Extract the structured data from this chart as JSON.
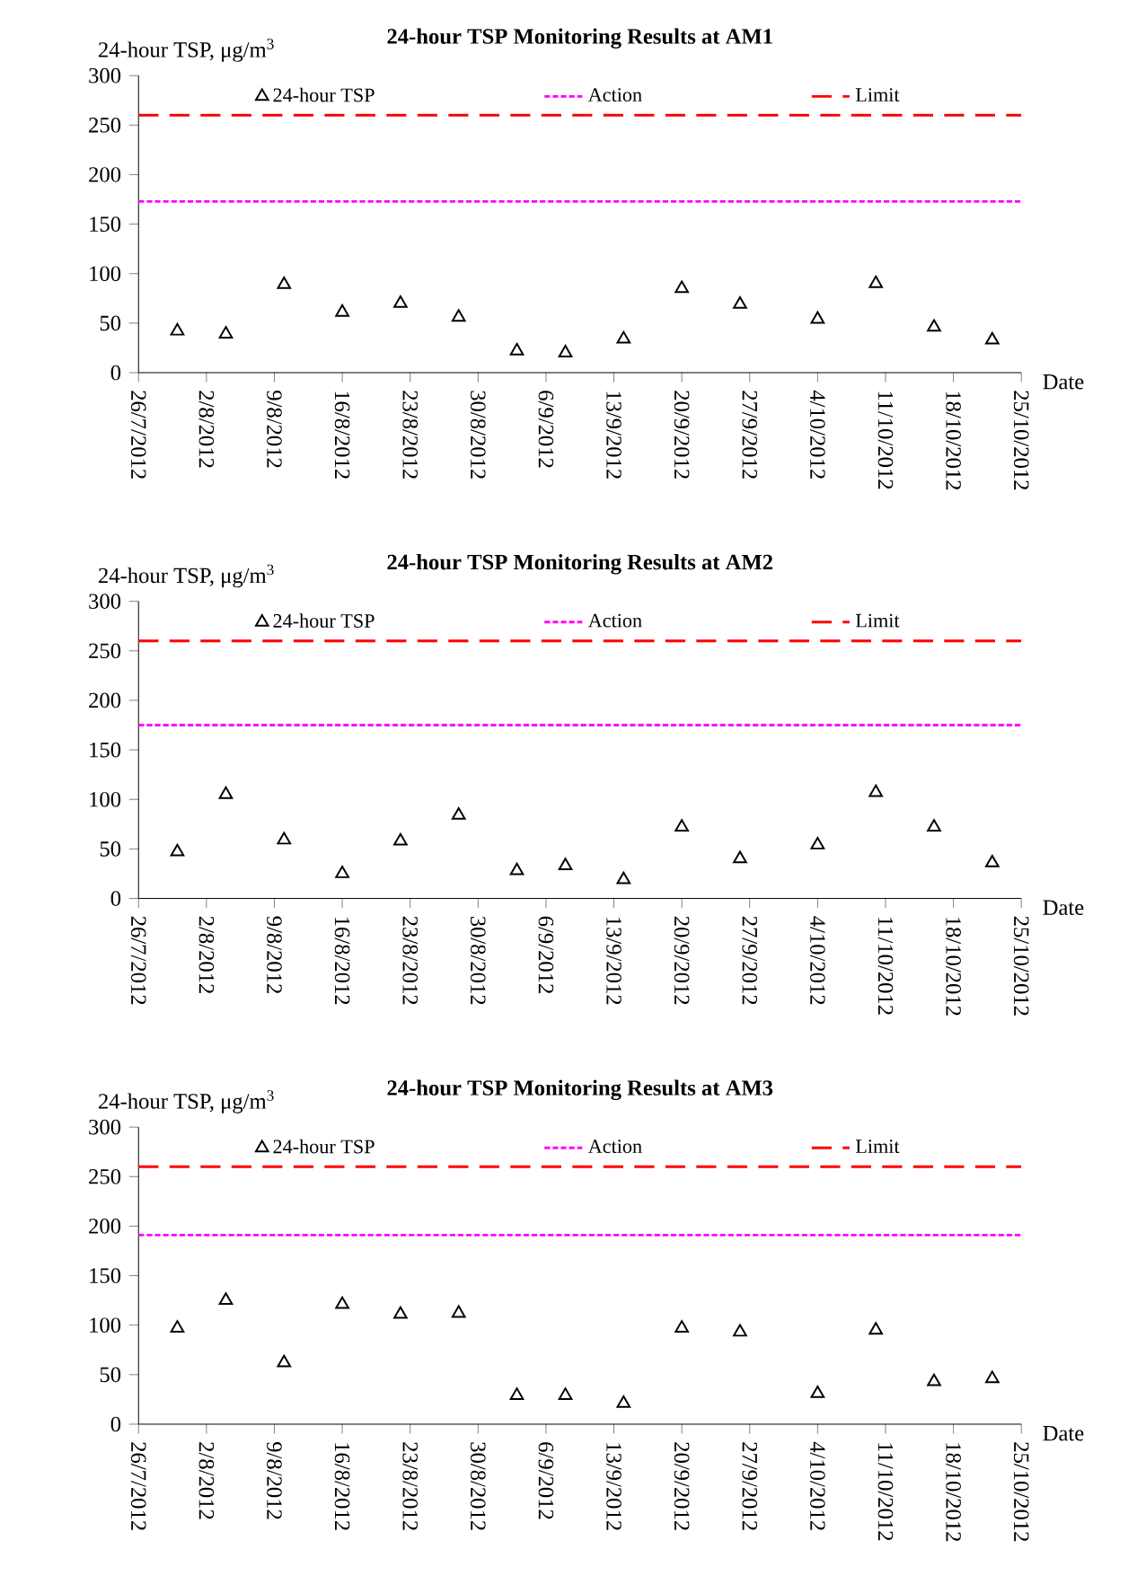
{
  "chart_data": [
    {
      "type": "scatter",
      "title": "24-hour TSP Monitoring Results at AM1",
      "xlabel": "Date",
      "ylabel": "24-hour TSP, μg/m$^{3}$",
      "x": [
        "2012-07-30",
        "2012-08-04",
        "2012-08-10",
        "2012-08-16",
        "2012-08-22",
        "2012-08-28",
        "2012-09-03",
        "2012-09-08",
        "2012-09-14",
        "2012-09-20",
        "2012-09-26",
        "2012-10-04",
        "2012-10-10",
        "2012-10-16",
        "2012-10-22"
      ],
      "series": [
        {
          "name": "24-hour TSP",
          "color": "#000000",
          "values": [
            42,
            39,
            89,
            61,
            70,
            56,
            22,
            20,
            34,
            85,
            69,
            54,
            90,
            46,
            33
          ]
        }
      ],
      "marker": "triangle",
      "legend": "top",
      "xlim": [
        "2012-07-26",
        "2012-10-25"
      ],
      "ylim": [
        0,
        300
      ],
      "yticks": [
        0,
        50,
        100,
        150,
        200,
        250,
        300
      ],
      "xticks": [
        {
          "value": "2012-07-26",
          "label": "26/7/2012"
        },
        {
          "value": "2012-08-02",
          "label": "2/8/2012"
        },
        {
          "value": "2012-08-09",
          "label": "9/8/2012"
        },
        {
          "value": "2012-08-16",
          "label": "16/8/2012"
        },
        {
          "value": "2012-08-23",
          "label": "23/8/2012"
        },
        {
          "value": "2012-08-30",
          "label": "30/8/2012"
        },
        {
          "value": "2012-09-06",
          "label": "6/9/2012"
        },
        {
          "value": "2012-09-13",
          "label": "13/9/2012"
        },
        {
          "value": "2012-09-20",
          "label": "20/9/2012"
        },
        {
          "value": "2012-09-27",
          "label": "27/9/2012"
        },
        {
          "value": "2012-10-04",
          "label": "4/10/2012"
        },
        {
          "value": "2012-10-11",
          "label": "11/10/2012"
        },
        {
          "value": "2012-10-18",
          "label": "18/10/2012"
        },
        {
          "value": "2012-10-25",
          "label": "25/10/2012"
        }
      ],
      "ref_lines": [
        {
          "axis": "y",
          "value": 173,
          "label": "Action",
          "color": "#ff00ff",
          "line_style": "dotted"
        },
        {
          "axis": "y",
          "value": 260,
          "label": "Limit",
          "color": "#ff0000",
          "line_style": "dashed"
        }
      ]
    },
    {
      "type": "scatter",
      "title": "24-hour TSP Monitoring Results at AM2",
      "xlabel": "Date",
      "ylabel": "24-hour TSP, μg/m$^{3}$",
      "x": [
        "2012-07-30",
        "2012-08-04",
        "2012-08-10",
        "2012-08-16",
        "2012-08-22",
        "2012-08-28",
        "2012-09-03",
        "2012-09-08",
        "2012-09-14",
        "2012-09-20",
        "2012-09-26",
        "2012-10-04",
        "2012-10-10",
        "2012-10-16",
        "2012-10-22"
      ],
      "series": [
        {
          "name": "24-hour TSP",
          "color": "#000000",
          "values": [
            47,
            105,
            59,
            25,
            58,
            84,
            28,
            33,
            19,
            72,
            40,
            54,
            107,
            72,
            36
          ]
        }
      ],
      "marker": "triangle",
      "legend": "top",
      "xlim": [
        "2012-07-26",
        "2012-10-25"
      ],
      "ylim": [
        0,
        300
      ],
      "yticks": [
        0,
        50,
        100,
        150,
        200,
        250,
        300
      ],
      "xticks": [
        {
          "value": "2012-07-26",
          "label": "26/7/2012"
        },
        {
          "value": "2012-08-02",
          "label": "2/8/2012"
        },
        {
          "value": "2012-08-09",
          "label": "9/8/2012"
        },
        {
          "value": "2012-08-16",
          "label": "16/8/2012"
        },
        {
          "value": "2012-08-23",
          "label": "23/8/2012"
        },
        {
          "value": "2012-08-30",
          "label": "30/8/2012"
        },
        {
          "value": "2012-09-06",
          "label": "6/9/2012"
        },
        {
          "value": "2012-09-13",
          "label": "13/9/2012"
        },
        {
          "value": "2012-09-20",
          "label": "20/9/2012"
        },
        {
          "value": "2012-09-27",
          "label": "27/9/2012"
        },
        {
          "value": "2012-10-04",
          "label": "4/10/2012"
        },
        {
          "value": "2012-10-11",
          "label": "11/10/2012"
        },
        {
          "value": "2012-10-18",
          "label": "18/10/2012"
        },
        {
          "value": "2012-10-25",
          "label": "25/10/2012"
        }
      ],
      "ref_lines": [
        {
          "axis": "y",
          "value": 175,
          "label": "Action",
          "color": "#ff00ff",
          "line_style": "dotted"
        },
        {
          "axis": "y",
          "value": 260,
          "label": "Limit",
          "color": "#ff0000",
          "line_style": "dashed"
        }
      ]
    },
    {
      "type": "scatter",
      "title": "24-hour TSP Monitoring Results at AM3",
      "xlabel": "Date",
      "ylabel": "24-hour TSP, μg/m$^{3}$",
      "x": [
        "2012-07-30",
        "2012-08-04",
        "2012-08-10",
        "2012-08-16",
        "2012-08-22",
        "2012-08-28",
        "2012-09-03",
        "2012-09-08",
        "2012-09-14",
        "2012-09-20",
        "2012-09-26",
        "2012-10-04",
        "2012-10-10",
        "2012-10-16",
        "2012-10-22"
      ],
      "series": [
        {
          "name": "24-hour TSP",
          "color": "#000000",
          "values": [
            97,
            125,
            62,
            121,
            111,
            112,
            29,
            29,
            21,
            97,
            93,
            31,
            95,
            43,
            46
          ]
        }
      ],
      "marker": "triangle",
      "legend": "top",
      "xlim": [
        "2012-07-26",
        "2012-10-25"
      ],
      "ylim": [
        0,
        300
      ],
      "yticks": [
        0,
        50,
        100,
        150,
        200,
        250,
        300
      ],
      "xticks": [
        {
          "value": "2012-07-26",
          "label": "26/7/2012"
        },
        {
          "value": "2012-08-02",
          "label": "2/8/2012"
        },
        {
          "value": "2012-08-09",
          "label": "9/8/2012"
        },
        {
          "value": "2012-08-16",
          "label": "16/8/2012"
        },
        {
          "value": "2012-08-23",
          "label": "23/8/2012"
        },
        {
          "value": "2012-08-30",
          "label": "30/8/2012"
        },
        {
          "value": "2012-09-06",
          "label": "6/9/2012"
        },
        {
          "value": "2012-09-13",
          "label": "13/9/2012"
        },
        {
          "value": "2012-09-20",
          "label": "20/9/2012"
        },
        {
          "value": "2012-09-27",
          "label": "27/9/2012"
        },
        {
          "value": "2012-10-04",
          "label": "4/10/2012"
        },
        {
          "value": "2012-10-11",
          "label": "11/10/2012"
        },
        {
          "value": "2012-10-18",
          "label": "18/10/2012"
        },
        {
          "value": "2012-10-25",
          "label": "25/10/2012"
        }
      ],
      "ref_lines": [
        {
          "axis": "y",
          "value": 191,
          "label": "Action",
          "color": "#ff00ff",
          "line_style": "dotted"
        },
        {
          "axis": "y",
          "value": 260,
          "label": "Limit",
          "color": "#ff0000",
          "line_style": "dashed"
        }
      ]
    }
  ]
}
